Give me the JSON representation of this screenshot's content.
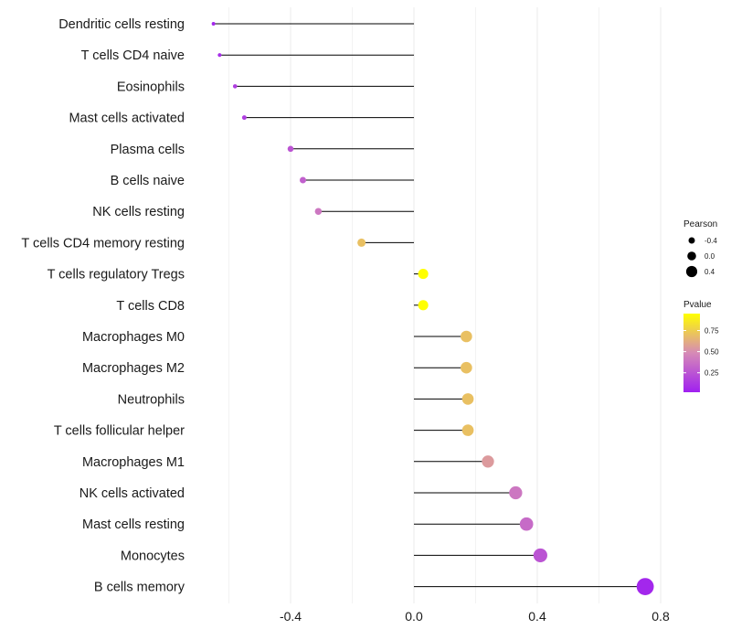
{
  "chart_data": {
    "type": "lollipop",
    "categories": [
      "Dendritic cells resting",
      "T cells CD4 naive",
      "Eosinophils",
      "Mast cells activated",
      "Plasma cells",
      "B cells naive",
      "NK cells resting",
      "T cells CD4 memory resting",
      "T cells regulatory  Tregs ",
      "T cells CD8",
      "Macrophages M0",
      "Macrophages M2",
      "Neutrophils",
      "T cells follicular helper",
      "Macrophages M1",
      "NK cells activated",
      "Mast cells resting",
      "Monocytes",
      "B cells memory"
    ],
    "pearson": [
      -0.65,
      -0.63,
      -0.58,
      -0.55,
      -0.4,
      -0.36,
      -0.31,
      -0.17,
      0.03,
      0.03,
      0.17,
      0.17,
      0.175,
      0.175,
      0.24,
      0.33,
      0.365,
      0.41,
      0.75
    ],
    "pvalue": [
      0.05,
      0.08,
      0.15,
      0.15,
      0.25,
      0.3,
      0.4,
      0.7,
      0.95,
      0.95,
      0.7,
      0.7,
      0.7,
      0.7,
      0.55,
      0.4,
      0.35,
      0.25,
      0.05
    ],
    "x_ticks": [
      -0.4,
      0.0,
      0.4,
      0.8
    ],
    "x_tick_labels": [
      "-0.4",
      "0.0",
      "0.4",
      "0.8"
    ],
    "xlim": [
      -0.68,
      0.81
    ],
    "xlabel": "",
    "ylabel": "",
    "grid": true,
    "legend_size": {
      "title": "Pearson",
      "values": [
        -0.4,
        0.0,
        0.4
      ],
      "labels": [
        "-0.4",
        "0.0",
        "0.4"
      ]
    },
    "legend_color": {
      "title": "Pvalue",
      "range": [
        0.02,
        0.95
      ],
      "ticks": [
        0.25,
        0.5,
        0.75
      ],
      "labels": [
        "0.25",
        "0.50",
        "0.75"
      ],
      "low_color": "#a020f0",
      "high_color": "#ffff00"
    },
    "colors": {
      "stem": "#000000",
      "grid": "#ebebeb",
      "background": "#ffffff"
    }
  }
}
